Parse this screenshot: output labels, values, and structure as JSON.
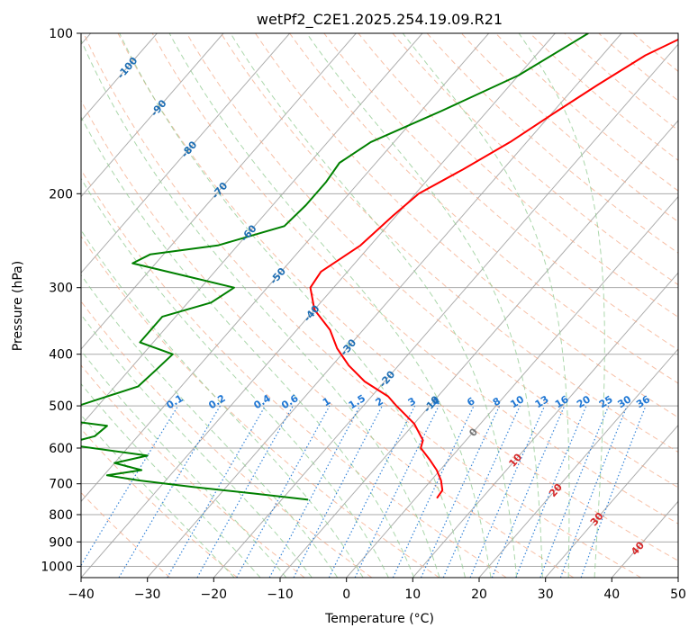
{
  "chart_data": {
    "type": "line",
    "title": "wetPf2_C2E1.2025.254.19.09.R21",
    "xlabel": "Temperature (°C)",
    "ylabel": "Pressure (hPa)",
    "xlim": [
      -40,
      50
    ],
    "ylim": [
      1050,
      100
    ],
    "y_scale": "log",
    "x_ticks": [
      "−40",
      "−30",
      "−20",
      "−10",
      "0",
      "10",
      "20",
      "30",
      "40",
      "50"
    ],
    "y_ticks": [
      {
        "p": 100,
        "label": "100"
      },
      {
        "p": 200,
        "label": "200"
      },
      {
        "p": 300,
        "label": "300"
      },
      {
        "p": 400,
        "label": "400"
      },
      {
        "p": 500,
        "label": "500"
      },
      {
        "p": 600,
        "label": "600"
      },
      {
        "p": 700,
        "label": "700"
      },
      {
        "p": 800,
        "label": "800"
      },
      {
        "p": 900,
        "label": "900"
      },
      {
        "p": 1000,
        "label": "1000"
      }
    ],
    "colors": {
      "temperature": "#ff0000",
      "dewpoint": "#008000",
      "isotherm": "#a0a0a0",
      "dry_adiabat": "#f4a582",
      "moist_adiabat": "#8fc98f",
      "mixing_ratio": "#1f77d4",
      "isotherm_label_cold": "#1f6fb4",
      "isotherm_label_warm": "#d62728"
    },
    "isotherm_labels": [
      {
        "t": -100,
        "p": 116,
        "label": "-100"
      },
      {
        "t": -90,
        "p": 138,
        "label": "-90"
      },
      {
        "t": -80,
        "p": 165,
        "label": "-80"
      },
      {
        "t": -70,
        "p": 197,
        "label": "-70"
      },
      {
        "t": -60,
        "p": 237,
        "label": "-60"
      },
      {
        "t": -50,
        "p": 285,
        "label": "-50"
      },
      {
        "t": -40,
        "p": 335,
        "label": "-40"
      },
      {
        "t": -30,
        "p": 388,
        "label": "-30"
      },
      {
        "t": -20,
        "p": 445,
        "label": "-20"
      },
      {
        "t": -10,
        "p": 496,
        "label": "-10"
      },
      {
        "t": 0,
        "p": 560,
        "label": "0"
      },
      {
        "t": 10,
        "p": 632,
        "label": "10"
      },
      {
        "t": 20,
        "p": 719,
        "label": "20"
      },
      {
        "t": 30,
        "p": 815,
        "label": "30"
      },
      {
        "t": 40,
        "p": 925,
        "label": "40"
      }
    ],
    "mixing_ratio_labels": [
      "0.1",
      "0.2",
      "0.4",
      "0.6",
      "1",
      "1.5",
      "2",
      "3",
      "4",
      "6",
      "8",
      "10",
      "13",
      "16",
      "20",
      "25",
      "30",
      "36"
    ],
    "series": [
      {
        "name": "",
        "role": "temperature",
        "points": [
          [
            100,
            -19.5
          ],
          [
            110,
            -23.5
          ],
          [
            125,
            -26.8
          ],
          [
            140,
            -29.5
          ],
          [
            160,
            -32.5
          ],
          [
            180,
            -36.0
          ],
          [
            200,
            -39.5
          ],
          [
            220,
            -40.5
          ],
          [
            250,
            -41.5
          ],
          [
            280,
            -44.0
          ],
          [
            300,
            -43.5
          ],
          [
            330,
            -40.0
          ],
          [
            360,
            -35.0
          ],
          [
            390,
            -31.5
          ],
          [
            420,
            -27.5
          ],
          [
            450,
            -23.0
          ],
          [
            480,
            -17.5
          ],
          [
            500,
            -15.0
          ],
          [
            540,
            -10.0
          ],
          [
            580,
            -6.5
          ],
          [
            600,
            -5.8
          ],
          [
            630,
            -3.0
          ],
          [
            660,
            -0.5
          ],
          [
            690,
            1.5
          ],
          [
            720,
            3.0
          ],
          [
            745,
            3.2
          ]
        ]
      },
      {
        "name": "",
        "role": "dewpoint",
        "points": [
          [
            100,
            -35.0
          ],
          [
            120,
            -40.0
          ],
          [
            140,
            -47.0
          ],
          [
            160,
            -53.5
          ],
          [
            175,
            -55.5
          ],
          [
            190,
            -55.0
          ],
          [
            210,
            -55.0
          ],
          [
            230,
            -55.5
          ],
          [
            250,
            -63.0
          ],
          [
            260,
            -72.0
          ],
          [
            270,
            -73.5
          ],
          [
            285,
            -64.0
          ],
          [
            300,
            -55.0
          ],
          [
            320,
            -56.5
          ],
          [
            340,
            -62.0
          ],
          [
            380,
            -62.0
          ],
          [
            400,
            -55.5
          ],
          [
            430,
            -56.0
          ],
          [
            460,
            -56.5
          ],
          [
            500,
            -63.0
          ],
          [
            520,
            -70.0
          ],
          [
            545,
            -56.0
          ],
          [
            570,
            -56.5
          ],
          [
            590,
            -60.0
          ],
          [
            620,
            -46.0
          ],
          [
            640,
            -50.0
          ],
          [
            660,
            -45.0
          ],
          [
            675,
            -49.5
          ],
          [
            690,
            -44.0
          ],
          [
            710,
            -35.0
          ],
          [
            730,
            -25.0
          ],
          [
            750,
            -16.0
          ]
        ]
      }
    ]
  }
}
